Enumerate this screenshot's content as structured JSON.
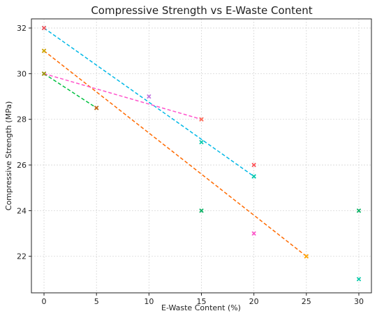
{
  "chart_data": {
    "type": "scatter",
    "title": "Compressive Strength vs E-Waste Content",
    "xlabel": "E-Waste Content (%)",
    "ylabel": "Compressive Strength (MPa)",
    "xlim": [
      -1.2,
      31.2
    ],
    "ylim": [
      20.4,
      32.4
    ],
    "xticks": [
      0,
      5,
      10,
      15,
      20,
      25,
      30
    ],
    "yticks": [
      22,
      24,
      26,
      28,
      30,
      32
    ],
    "grid": true,
    "legend": "none",
    "series": [
      {
        "color": "#00b8e6",
        "points": [
          [
            0,
            32
          ],
          [
            20,
            25.5
          ]
        ],
        "line": true
      },
      {
        "color": "#ff6a00",
        "points": [
          [
            0,
            31
          ],
          [
            25,
            22
          ]
        ],
        "line": true
      },
      {
        "color": "#00c040",
        "points": [
          [
            0,
            30
          ],
          [
            5,
            28.5
          ]
        ],
        "line": true
      },
      {
        "color": "#ff55cc",
        "points": [
          [
            0,
            30
          ],
          [
            15,
            28
          ]
        ],
        "line": true
      },
      {
        "color": "#ff4b50",
        "points": [
          [
            0,
            32
          ],
          [
            20,
            26
          ]
        ],
        "line": false
      },
      {
        "color": "#c9a800",
        "points": [
          [
            0,
            31
          ]
        ],
        "line": false
      },
      {
        "color": "#9a9a00",
        "points": [
          [
            0,
            30
          ]
        ],
        "line": false
      },
      {
        "color": "#d06010",
        "points": [
          [
            5,
            28.5
          ]
        ],
        "line": false
      },
      {
        "color": "#c070e0",
        "points": [
          [
            10,
            29
          ]
        ],
        "line": false
      },
      {
        "color": "#ff7050",
        "points": [
          [
            15,
            28
          ]
        ],
        "line": false
      },
      {
        "color": "#00c8a8",
        "points": [
          [
            15,
            27
          ],
          [
            20,
            25.5
          ],
          [
            30,
            21
          ]
        ],
        "line": false
      },
      {
        "color": "#00b060",
        "points": [
          [
            15,
            24
          ],
          [
            30,
            24
          ]
        ],
        "line": false
      },
      {
        "color": "#ff50c8",
        "points": [
          [
            20,
            23
          ]
        ],
        "line": false
      },
      {
        "color": "#ffaa00",
        "points": [
          [
            25,
            22
          ]
        ],
        "line": false
      }
    ]
  }
}
